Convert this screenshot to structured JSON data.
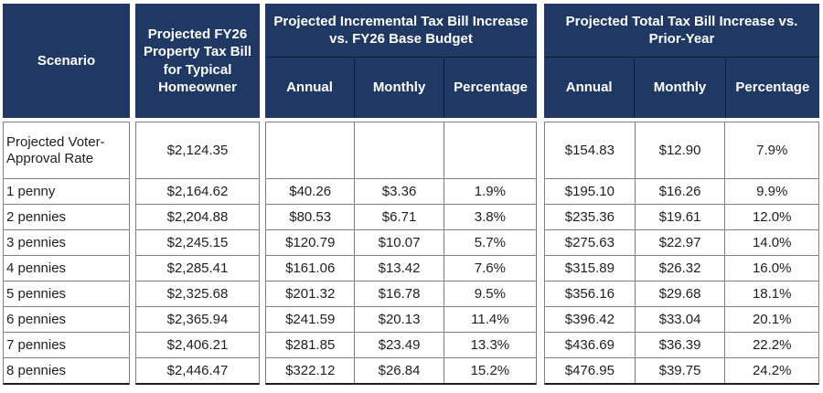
{
  "headers": {
    "scenario": "Scenario",
    "fy26_bill": "Projected FY26 Property Tax Bill for Typical Homeowner",
    "incremental_group": "Projected Incremental Tax Bill Increase vs. FY26 Base Budget",
    "total_group": "Projected Total Tax Bill Increase vs. Prior-Year",
    "annual": "Annual",
    "monthly": "Monthly",
    "percentage": "Percentage"
  },
  "colors": {
    "header_bg": "#1f3864",
    "header_text": "#ffffff",
    "header_divider": "#0e1c36",
    "cell_border": "#808080",
    "table_bottom_border": "#1f1f1f",
    "data_text": "#212121"
  },
  "chart_data": {
    "type": "table",
    "column_groups": [
      "Scenario",
      "Projected FY26 Property Tax Bill for Typical Homeowner",
      "Projected Incremental Tax Bill Increase vs. FY26 Base Budget",
      "Projected Total Tax Bill Increase vs. Prior-Year"
    ],
    "sub_columns": [
      "Annual",
      "Monthly",
      "Percentage"
    ],
    "rows": [
      {
        "scenario": "Projected Voter-Approval Rate",
        "bill": "$2,124.35",
        "ia": "",
        "im": "",
        "ip": "",
        "ta": "$154.83",
        "tm": "$12.90",
        "tp": "7.9%"
      },
      {
        "scenario": "1 penny",
        "bill": "$2,164.62",
        "ia": "$40.26",
        "im": "$3.36",
        "ip": "1.9%",
        "ta": "$195.10",
        "tm": "$16.26",
        "tp": "9.9%"
      },
      {
        "scenario": "2 pennies",
        "bill": "$2,204.88",
        "ia": "$80.53",
        "im": "$6.71",
        "ip": "3.8%",
        "ta": "$235.36",
        "tm": "$19.61",
        "tp": "12.0%"
      },
      {
        "scenario": "3 pennies",
        "bill": "$2,245.15",
        "ia": "$120.79",
        "im": "$10.07",
        "ip": "5.7%",
        "ta": "$275.63",
        "tm": "$22.97",
        "tp": "14.0%"
      },
      {
        "scenario": "4 pennies",
        "bill": "$2,285.41",
        "ia": "$161.06",
        "im": "$13.42",
        "ip": "7.6%",
        "ta": "$315.89",
        "tm": "$26.32",
        "tp": "16.0%"
      },
      {
        "scenario": "5 pennies",
        "bill": "$2,325.68",
        "ia": "$201.32",
        "im": "$16.78",
        "ip": "9.5%",
        "ta": "$356.16",
        "tm": "$29.68",
        "tp": "18.1%"
      },
      {
        "scenario": "6 pennies",
        "bill": "$2,365.94",
        "ia": "$241.59",
        "im": "$20.13",
        "ip": "11.4%",
        "ta": "$396.42",
        "tm": "$33.04",
        "tp": "20.1%"
      },
      {
        "scenario": "7 pennies",
        "bill": "$2,406.21",
        "ia": "$281.85",
        "im": "$23.49",
        "ip": "13.3%",
        "ta": "$436.69",
        "tm": "$36.39",
        "tp": "22.2%"
      },
      {
        "scenario": "8 pennies",
        "bill": "$2,446.47",
        "ia": "$322.12",
        "im": "$26.84",
        "ip": "15.2%",
        "ta": "$476.95",
        "tm": "$39.75",
        "tp": "24.2%"
      }
    ]
  }
}
